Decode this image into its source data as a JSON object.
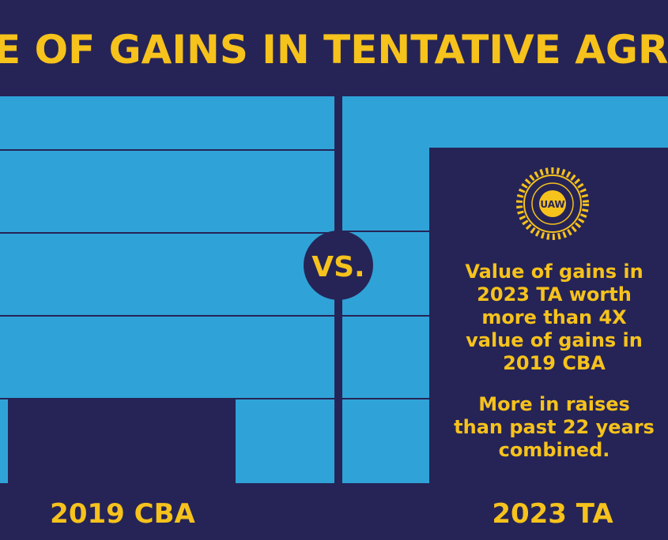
{
  "header": {
    "title": "E OF GAINS IN TENTATIVE AGREE"
  },
  "center": {
    "label": "VS."
  },
  "logo": {
    "label": "UAW"
  },
  "panel": {
    "statement1": [
      "Value of gains in",
      "2023 TA worth",
      "more than 4X",
      "value of gains in",
      "2019 CBA"
    ],
    "statement2": [
      "More in raises",
      "than past 22 years",
      "combined."
    ]
  },
  "columns": {
    "left": "2019 CBA",
    "right": "2023 TA"
  }
}
